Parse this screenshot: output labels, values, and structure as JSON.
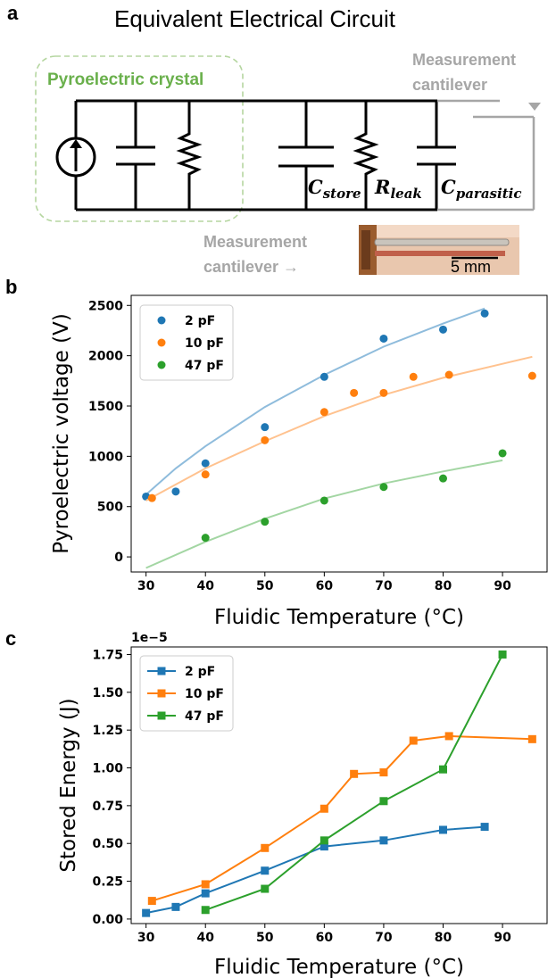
{
  "panel_a": {
    "letter": "a",
    "title": "Equivalent Electrical Circuit",
    "crystal_label": "Pyroelectric crystal",
    "cantilever_label_top_line1": "Measurement",
    "cantilever_label_top_line2": "cantilever",
    "cantilever_label_bottom_line1": "Measurement",
    "cantilever_label_bottom_line2": "cantilever →",
    "components": {
      "c_store": {
        "main": "C",
        "sub": "store"
      },
      "r_leak": {
        "main": "R",
        "sub": "leak"
      },
      "c_parasitic": {
        "main": "C",
        "sub": "parasitic"
      }
    },
    "scale_bar": "5 mm",
    "colors": {
      "crystal": "#6ab04c",
      "cantilever": "#a6a6a6",
      "dashed_box": "#b5d6a0"
    }
  },
  "chart_data": [
    {
      "panel": "b",
      "type": "scatter",
      "xlabel": "Fluidic Temperature (°C)",
      "ylabel": "Pyroelectric voltage (V)",
      "xlim": [
        27.5,
        97.5
      ],
      "ylim": [
        -150,
        2600
      ],
      "xticks": [
        "30",
        "40",
        "50",
        "60",
        "70",
        "80",
        "90"
      ],
      "yticks": [
        "0",
        "500",
        "1000",
        "1500",
        "2000",
        "2500"
      ],
      "legend_position": "top-left",
      "series": [
        {
          "name": "2 pF",
          "color": "#1f77b4",
          "fit_color": "#8fbcdc",
          "points": [
            [
              30,
              600
            ],
            [
              35,
              650
            ],
            [
              40,
              930
            ],
            [
              50,
              1290
            ],
            [
              60,
              1790
            ],
            [
              70,
              2170
            ],
            [
              80,
              2260
            ],
            [
              87,
              2420
            ]
          ],
          "fit": [
            [
              30,
              620
            ],
            [
              35,
              880
            ],
            [
              40,
              1100
            ],
            [
              50,
              1490
            ],
            [
              60,
              1810
            ],
            [
              70,
              2090
            ],
            [
              80,
              2320
            ],
            [
              87,
              2470
            ]
          ]
        },
        {
          "name": "10 pF",
          "color": "#ff7f0e",
          "fit_color": "#ffc28f",
          "points": [
            [
              31,
              585
            ],
            [
              40,
              820
            ],
            [
              50,
              1160
            ],
            [
              60,
              1440
            ],
            [
              65,
              1630
            ],
            [
              70,
              1630
            ],
            [
              75,
              1790
            ],
            [
              81,
              1810
            ],
            [
              95,
              1800
            ]
          ],
          "fit": [
            [
              30,
              560
            ],
            [
              40,
              880
            ],
            [
              50,
              1150
            ],
            [
              60,
              1400
            ],
            [
              70,
              1610
            ],
            [
              80,
              1780
            ],
            [
              90,
              1920
            ],
            [
              95,
              1990
            ]
          ]
        },
        {
          "name": "47 pF",
          "color": "#2ca02c",
          "fit_color": "#a3d6a3",
          "points": [
            [
              40,
              190
            ],
            [
              50,
              350
            ],
            [
              60,
              560
            ],
            [
              70,
              695
            ],
            [
              80,
              780
            ],
            [
              90,
              1030
            ]
          ],
          "fit": [
            [
              30,
              -110
            ],
            [
              40,
              150
            ],
            [
              50,
              380
            ],
            [
              60,
              580
            ],
            [
              70,
              730
            ],
            [
              80,
              850
            ],
            [
              90,
              960
            ]
          ]
        }
      ]
    },
    {
      "panel": "c",
      "type": "line",
      "xlabel": "Fluidic Temperature (°C)",
      "ylabel": "Stored Energy (J)",
      "y_exponent_label": "1e−5",
      "y_scale_factor": 1e-05,
      "xlim": [
        27.5,
        97.5
      ],
      "ylim": [
        -0.03,
        1.8
      ],
      "xticks": [
        "30",
        "40",
        "50",
        "60",
        "70",
        "80",
        "90"
      ],
      "yticks": [
        "0.00",
        "0.25",
        "0.50",
        "0.75",
        "1.00",
        "1.25",
        "1.50",
        "1.75"
      ],
      "legend_position": "top-left",
      "series": [
        {
          "name": "2 pF",
          "color": "#1f77b4",
          "points": [
            [
              30,
              0.04
            ],
            [
              35,
              0.08
            ],
            [
              40,
              0.17
            ],
            [
              50,
              0.32
            ],
            [
              60,
              0.48
            ],
            [
              70,
              0.52
            ],
            [
              80,
              0.59
            ],
            [
              87,
              0.61
            ]
          ]
        },
        {
          "name": "10 pF",
          "color": "#ff7f0e",
          "points": [
            [
              31,
              0.12
            ],
            [
              40,
              0.23
            ],
            [
              50,
              0.47
            ],
            [
              60,
              0.73
            ],
            [
              65,
              0.96
            ],
            [
              70,
              0.97
            ],
            [
              75,
              1.18
            ],
            [
              81,
              1.21
            ],
            [
              95,
              1.19
            ]
          ]
        },
        {
          "name": "47 pF",
          "color": "#2ca02c",
          "points": [
            [
              40,
              0.06
            ],
            [
              50,
              0.2
            ],
            [
              60,
              0.52
            ],
            [
              70,
              0.78
            ],
            [
              80,
              0.99
            ],
            [
              90,
              1.75
            ]
          ]
        }
      ]
    }
  ]
}
